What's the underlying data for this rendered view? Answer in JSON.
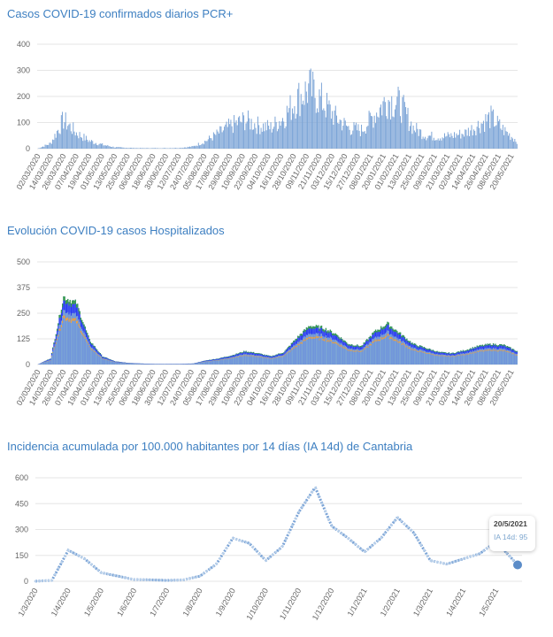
{
  "colors": {
    "bar": "#7aa3d6",
    "green": "#3aa346",
    "blue": "#2b3ff0",
    "orange": "#f2a33a",
    "line": "#7aa3d6",
    "point": "#5b8cc8"
  },
  "chart_data": [
    {
      "type": "bar",
      "title": "Casos COVID-19 confirmados diarios PCR+",
      "ylim": [
        0,
        400
      ],
      "yticks": [
        0,
        100,
        200,
        300,
        400
      ],
      "categories": [
        "02/03/2020",
        "14/03/2020",
        "26/03/2020",
        "07/04/2020",
        "19/04/2020",
        "01/05/2020",
        "13/05/2020",
        "25/05/2020",
        "06/06/2020",
        "18/06/2020",
        "30/06/2020",
        "12/07/2020",
        "24/07/2020",
        "05/08/2020",
        "17/08/2020",
        "29/08/2020",
        "10/09/2020",
        "22/09/2020",
        "04/10/2020",
        "16/10/2020",
        "28/10/2020",
        "09/11/2020",
        "21/11/2020",
        "03/12/2020",
        "15/12/2020",
        "27/12/2020",
        "08/01/2021",
        "20/01/2021",
        "01/02/2021",
        "13/02/2021",
        "25/02/2021",
        "09/03/2021",
        "21/03/2021",
        "02/04/2021",
        "14/04/2021",
        "26/04/2021",
        "08/05/2021",
        "20/05/2021"
      ],
      "values": [
        0,
        20,
        110,
        60,
        30,
        15,
        5,
        3,
        2,
        2,
        2,
        3,
        8,
        30,
        60,
        90,
        110,
        90,
        80,
        120,
        190,
        230,
        180,
        120,
        80,
        70,
        130,
        190,
        170,
        80,
        50,
        45,
        50,
        60,
        90,
        120,
        70,
        30
      ]
    },
    {
      "type": "bar",
      "title": "Evolución COVID-19 casos  Hospitalizados",
      "ylim": [
        0,
        500
      ],
      "yticks": [
        0,
        125,
        250,
        375,
        500
      ],
      "categories": [
        "02/03/2020",
        "14/03/2020",
        "26/03/2020",
        "07/04/2020",
        "19/04/2020",
        "01/05/2020",
        "13/05/2020",
        "25/05/2020",
        "06/06/2020",
        "18/06/2020",
        "30/06/2020",
        "12/07/2020",
        "24/07/2020",
        "05/08/2020",
        "17/08/2020",
        "29/08/2020",
        "10/09/2020",
        "22/09/2020",
        "04/10/2020",
        "16/10/2020",
        "28/10/2020",
        "09/11/2020",
        "21/11/2020",
        "03/12/2020",
        "15/12/2020",
        "27/12/2020",
        "08/01/2021",
        "20/01/2021",
        "01/02/2021",
        "13/02/2021",
        "25/02/2021",
        "09/03/2021",
        "21/03/2021",
        "02/04/2021",
        "14/04/2021",
        "26/04/2021",
        "08/05/2021",
        "20/05/2021"
      ],
      "values": [
        0,
        30,
        330,
        300,
        120,
        40,
        15,
        8,
        5,
        3,
        3,
        3,
        5,
        20,
        30,
        45,
        65,
        55,
        40,
        60,
        130,
        190,
        180,
        150,
        100,
        90,
        160,
        200,
        150,
        100,
        80,
        60,
        55,
        70,
        90,
        100,
        95,
        65
      ]
    },
    {
      "type": "line",
      "title": "Incidencia acumulada por 100.000 habitantes por 14 días (IA 14d) de Cantabria",
      "ylim": [
        0,
        600
      ],
      "yticks": [
        0,
        150,
        300,
        450,
        600
      ],
      "xticks": [
        "1/3/2020",
        "1/4/2020",
        "1/5/2020",
        "1/6/2020",
        "1/7/2020",
        "1/8/2020",
        "1/9/2020",
        "1/10/2020",
        "1/11/2020",
        "1/12/2020",
        "1/1/2021",
        "1/2/2021",
        "1/3/2021",
        "1/4/2021",
        "1/5/2021"
      ],
      "x": [
        0,
        0.5,
        1,
        1.5,
        2,
        2.5,
        3,
        3.5,
        4,
        4.5,
        5,
        5.5,
        6,
        6.5,
        7,
        7.5,
        8,
        8.5,
        9,
        9.5,
        10,
        10.5,
        11,
        11.5,
        12,
        12.5,
        13,
        13.5,
        14,
        14.65
      ],
      "values": [
        0,
        5,
        180,
        130,
        50,
        30,
        10,
        8,
        5,
        8,
        30,
        100,
        250,
        220,
        120,
        200,
        400,
        545,
        320,
        250,
        170,
        250,
        370,
        280,
        120,
        100,
        130,
        160,
        230,
        95
      ],
      "tooltip": {
        "date": "20/5/2021",
        "label": "IA 14d: 95"
      }
    }
  ]
}
